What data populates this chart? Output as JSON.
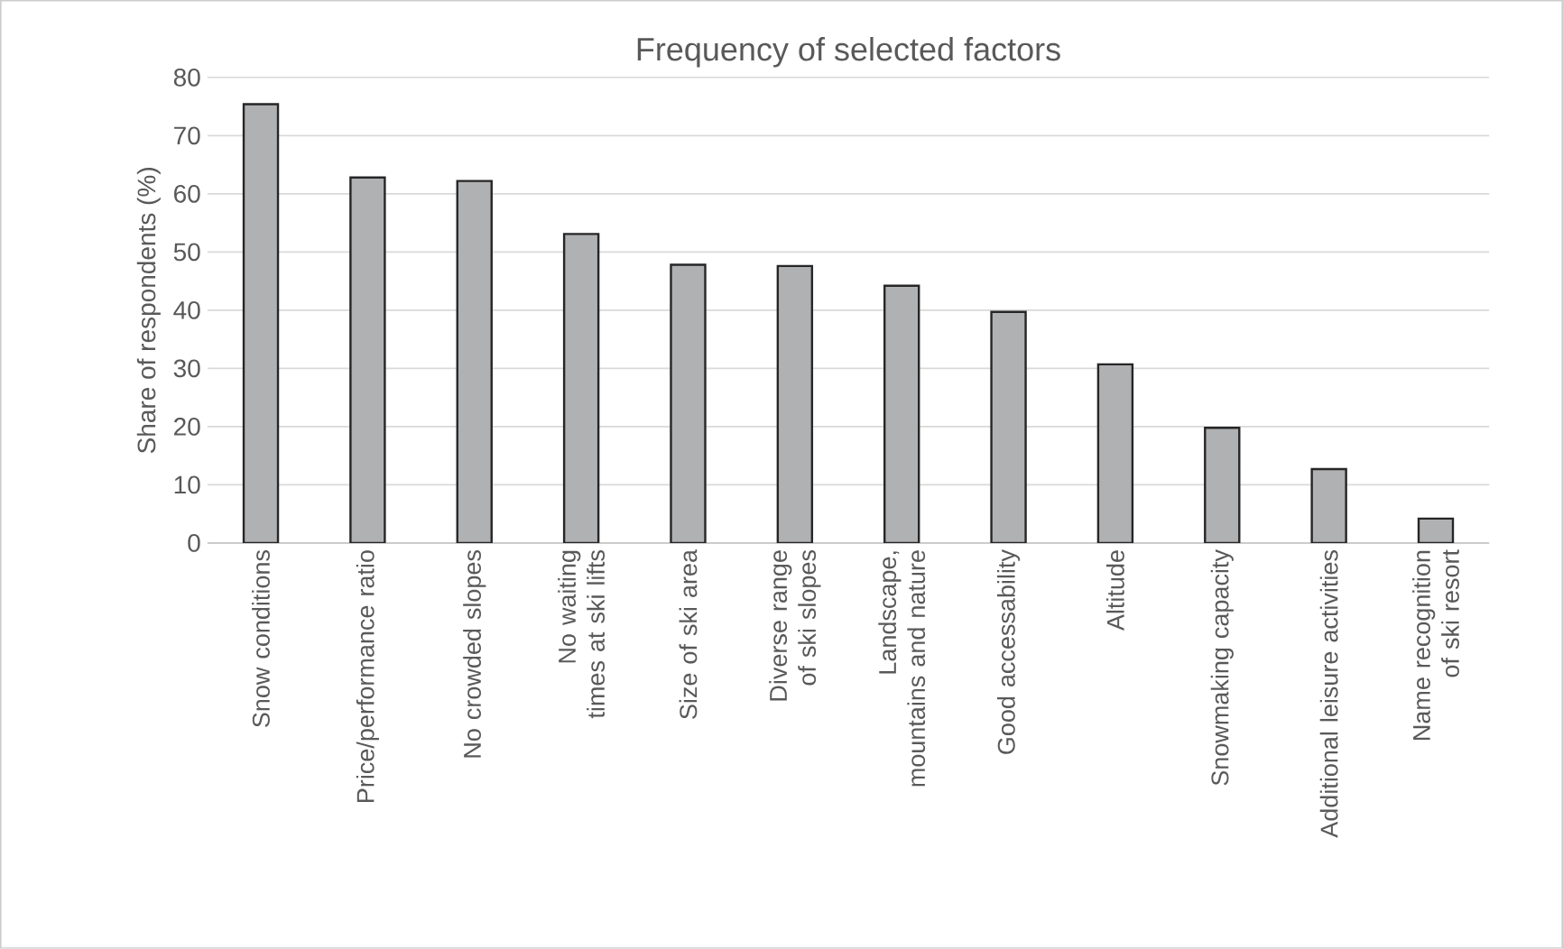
{
  "chart_data": {
    "type": "bar",
    "title": "Frequency of selected factors",
    "ylabel": "Share of respondents (%)",
    "categories": [
      "Snow conditions",
      "Price/performance ratio",
      "No crowded slopes",
      "No waiting times at ski lifts",
      "Size of ski area",
      "Diverse range of ski slopes",
      "Landscape, mountains and nature",
      "Good accessability",
      "Altitude",
      "Snowmaking capacity",
      "Additional leisure activities",
      "Name recognition of ski resort"
    ],
    "values": [
      75.4,
      62.8,
      62.2,
      53.1,
      47.8,
      47.6,
      44.2,
      39.7,
      30.7,
      19.8,
      12.7,
      4.2
    ],
    "color": "#b0b1b3",
    "ylim": [
      0,
      80
    ],
    "yticks": [
      0,
      10,
      20,
      30,
      40,
      50,
      60,
      70,
      80
    ],
    "grid": "y"
  }
}
